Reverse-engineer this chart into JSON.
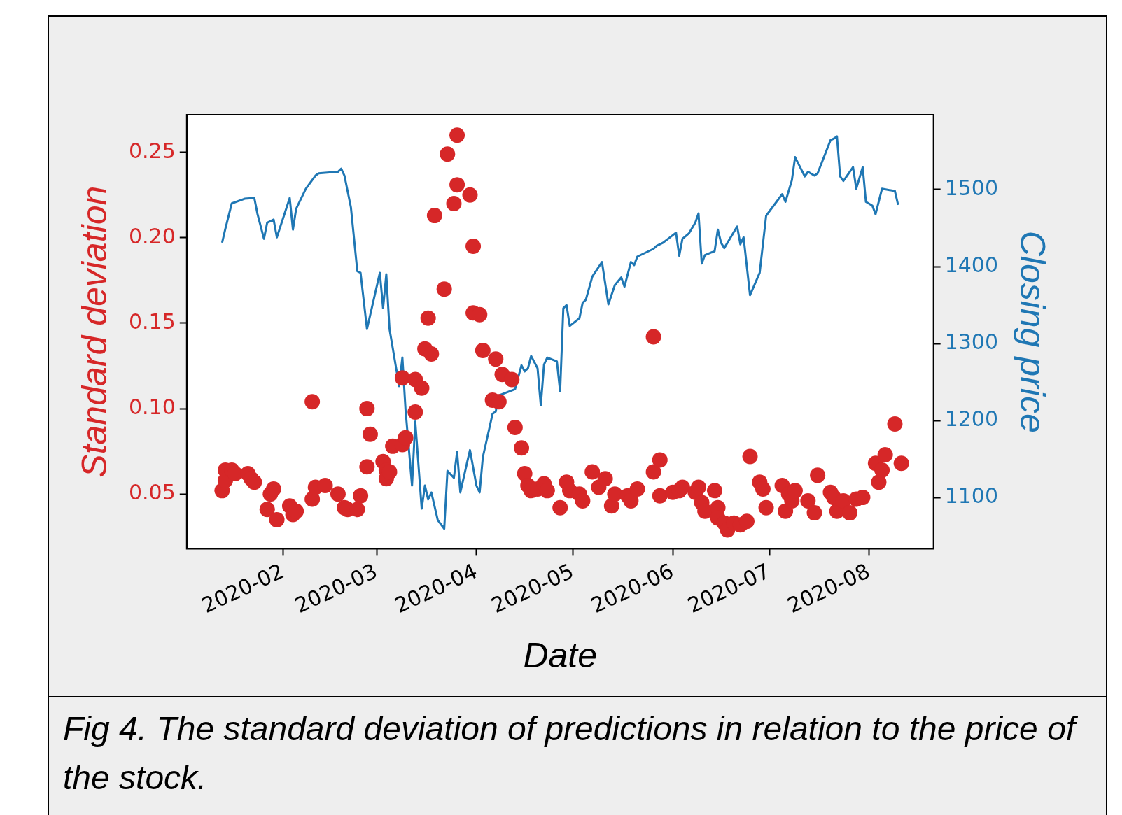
{
  "chart_data": {
    "type": "scatter",
    "xlabel": "Date",
    "ylabel": "Standard deviation",
    "y2label": "Closing price",
    "annotations": [
      "Fig 4. The standard deviation of predictions in relation to the price of the stock."
    ],
    "xlim": [
      "2020-01-02",
      "2020-08-21"
    ],
    "xticks": [
      "2020-02",
      "2020-03",
      "2020-04",
      "2020-05",
      "2020-06",
      "2020-07",
      "2020-08"
    ],
    "ylim": [
      0.018,
      0.272
    ],
    "yticks": [
      0.05,
      {
        "value": 0.1,
        "label": "0.10"
      },
      0.15,
      {
        "value": 0.2,
        "label": "0.20"
      },
      0.25
    ],
    "y2lim": [
      1034,
      1597
    ],
    "y2ticks": [
      1100,
      1200,
      1300,
      1400,
      1500
    ],
    "grid": false,
    "line_style": "solid",
    "series": [
      {
        "marker": "circle",
        "color": "#d62728",
        "x": [
          "2020-01-13",
          "2020-01-14",
          "2020-01-14",
          "2020-01-16",
          "2020-01-17",
          "2020-01-21",
          "2020-01-22",
          "2020-01-23",
          "2020-01-27",
          "2020-01-28",
          "2020-01-29",
          "2020-01-30",
          "2020-02-03",
          "2020-02-04",
          "2020-02-05",
          "2020-02-10",
          "2020-02-10",
          "2020-02-11",
          "2020-02-14",
          "2020-02-18",
          "2020-02-20",
          "2020-02-21",
          "2020-02-24",
          "2020-02-25",
          "2020-02-27",
          "2020-02-27",
          "2020-02-28",
          "2020-03-03",
          "2020-03-04",
          "2020-03-04",
          "2020-03-05",
          "2020-03-06",
          "2020-03-09",
          "2020-03-09",
          "2020-03-10",
          "2020-03-13",
          "2020-03-13",
          "2020-03-15",
          "2020-03-16",
          "2020-03-17",
          "2020-03-18",
          "2020-03-19",
          "2020-03-22",
          "2020-03-23",
          "2020-03-25",
          "2020-03-26",
          "2020-03-26",
          "2020-03-30",
          "2020-03-31",
          "2020-03-31",
          "2020-04-02",
          "2020-04-03",
          "2020-04-06",
          "2020-04-07",
          "2020-04-08",
          "2020-04-09",
          "2020-04-12",
          "2020-04-13",
          "2020-04-15",
          "2020-04-16",
          "2020-04-17",
          "2020-04-18",
          "2020-04-20",
          "2020-04-22",
          "2020-04-23",
          "2020-04-27",
          "2020-04-29",
          "2020-04-30",
          "2020-05-03",
          "2020-05-04",
          "2020-05-07",
          "2020-05-09",
          "2020-05-11",
          "2020-05-13",
          "2020-05-14",
          "2020-05-18",
          "2020-05-19",
          "2020-05-21",
          "2020-05-26",
          "2020-05-26",
          "2020-05-28",
          "2020-05-28",
          "2020-06-01",
          "2020-06-03",
          "2020-06-04",
          "2020-06-08",
          "2020-06-09",
          "2020-06-10",
          "2020-06-11",
          "2020-06-14",
          "2020-06-15",
          "2020-06-15",
          "2020-06-17",
          "2020-06-18",
          "2020-06-20",
          "2020-06-22",
          "2020-06-24",
          "2020-06-25",
          "2020-06-28",
          "2020-06-29",
          "2020-06-30",
          "2020-07-05",
          "2020-07-06",
          "2020-07-07",
          "2020-07-08",
          "2020-07-09",
          "2020-07-13",
          "2020-07-15",
          "2020-07-16",
          "2020-07-20",
          "2020-07-21",
          "2020-07-22",
          "2020-07-24",
          "2020-07-26",
          "2020-07-28",
          "2020-07-30",
          "2020-08-03",
          "2020-08-04",
          "2020-08-05",
          "2020-08-06",
          "2020-08-09",
          "2020-08-11"
        ],
        "values": [
          0.052,
          0.064,
          0.058,
          0.064,
          0.062,
          0.062,
          0.059,
          0.057,
          0.041,
          0.05,
          0.053,
          0.035,
          0.043,
          0.038,
          0.04,
          0.104,
          0.047,
          0.054,
          0.055,
          0.05,
          0.042,
          0.041,
          0.041,
          0.049,
          0.066,
          0.1,
          0.085,
          0.069,
          0.064,
          0.059,
          0.063,
          0.078,
          0.079,
          0.118,
          0.083,
          0.117,
          0.098,
          0.112,
          0.135,
          0.153,
          0.132,
          0.213,
          0.17,
          0.249,
          0.22,
          0.231,
          0.26,
          0.225,
          0.195,
          0.156,
          0.155,
          0.134,
          0.105,
          0.129,
          0.104,
          0.12,
          0.117,
          0.089,
          0.077,
          0.062,
          0.055,
          0.052,
          0.053,
          0.056,
          0.052,
          0.042,
          0.057,
          0.052,
          0.05,
          0.046,
          0.063,
          0.054,
          0.059,
          0.043,
          0.05,
          0.049,
          0.046,
          0.053,
          0.142,
          0.063,
          0.07,
          0.049,
          0.051,
          0.052,
          0.054,
          0.051,
          0.054,
          0.045,
          0.04,
          0.052,
          0.042,
          0.036,
          0.033,
          0.029,
          0.033,
          0.032,
          0.034,
          0.072,
          0.057,
          0.053,
          0.042,
          0.055,
          0.04,
          0.05,
          0.046,
          0.052,
          0.046,
          0.039,
          0.061,
          0.051,
          0.048,
          0.04,
          0.046,
          0.039,
          0.047,
          0.048,
          0.068,
          0.057,
          0.064,
          0.073,
          0.091,
          0.068
        ]
      },
      {
        "type": "line",
        "axis": "y2",
        "color": "#1f77b4",
        "x": [
          "2020-01-13",
          "2020-01-14",
          "2020-01-16",
          "2020-01-20",
          "2020-01-23",
          "2020-01-24",
          "2020-01-26",
          "2020-01-27",
          "2020-01-29",
          "2020-01-30",
          "2020-02-03",
          "2020-02-04",
          "2020-02-05",
          "2020-02-08",
          "2020-02-11",
          "2020-02-12",
          "2020-02-18",
          "2020-02-19",
          "2020-02-20",
          "2020-02-22",
          "2020-02-24",
          "2020-02-25",
          "2020-02-27",
          "2020-03-02",
          "2020-03-03",
          "2020-03-04",
          "2020-03-05",
          "2020-03-08",
          "2020-03-09",
          "2020-03-10",
          "2020-03-12",
          "2020-03-13",
          "2020-03-15",
          "2020-03-16",
          "2020-03-17",
          "2020-03-18",
          "2020-03-20",
          "2020-03-22",
          "2020-03-23",
          "2020-03-25",
          "2020-03-26",
          "2020-03-27",
          "2020-03-29",
          "2020-03-30",
          "2020-04-01",
          "2020-04-02",
          "2020-04-03",
          "2020-04-05",
          "2020-04-06",
          "2020-04-07",
          "2020-04-08",
          "2020-04-13",
          "2020-04-15",
          "2020-04-16",
          "2020-04-17",
          "2020-04-18",
          "2020-04-20",
          "2020-04-21",
          "2020-04-22",
          "2020-04-23",
          "2020-04-26",
          "2020-04-27",
          "2020-04-28",
          "2020-04-29",
          "2020-04-30",
          "2020-05-03",
          "2020-05-04",
          "2020-05-05",
          "2020-05-07",
          "2020-05-10",
          "2020-05-12",
          "2020-05-14",
          "2020-05-16",
          "2020-05-17",
          "2020-05-19",
          "2020-05-20",
          "2020-05-21",
          "2020-05-26",
          "2020-05-27",
          "2020-05-29",
          "2020-06-02",
          "2020-06-03",
          "2020-06-04",
          "2020-06-06",
          "2020-06-08",
          "2020-06-09",
          "2020-06-10",
          "2020-06-11",
          "2020-06-14",
          "2020-06-15",
          "2020-06-16",
          "2020-06-17",
          "2020-06-21",
          "2020-06-22",
          "2020-06-23",
          "2020-06-25",
          "2020-06-28",
          "2020-06-30",
          "2020-07-05",
          "2020-07-06",
          "2020-07-08",
          "2020-07-09",
          "2020-07-12",
          "2020-07-13",
          "2020-07-15",
          "2020-07-16",
          "2020-07-20",
          "2020-07-21",
          "2020-07-22",
          "2020-07-23",
          "2020-07-24",
          "2020-07-27",
          "2020-07-28",
          "2020-07-30",
          "2020-07-31",
          "2020-08-02",
          "2020-08-03",
          "2020-08-05",
          "2020-08-09",
          "2020-08-10"
        ],
        "values": [
          1431,
          1449,
          1482,
          1488,
          1489,
          1468,
          1436,
          1457,
          1461,
          1438,
          1489,
          1448,
          1475,
          1501,
          1518,
          1521,
          1523,
          1527,
          1518,
          1477,
          1394,
          1392,
          1319,
          1392,
          1346,
          1390,
          1319,
          1245,
          1282,
          1213,
          1116,
          1199,
          1086,
          1116,
          1098,
          1107,
          1071,
          1060,
          1135,
          1126,
          1160,
          1107,
          1144,
          1162,
          1116,
          1107,
          1153,
          1190,
          1209,
          1212,
          1233,
          1241,
          1272,
          1264,
          1268,
          1284,
          1268,
          1220,
          1273,
          1282,
          1277,
          1238,
          1346,
          1350,
          1323,
          1333,
          1353,
          1357,
          1387,
          1406,
          1351,
          1376,
          1386,
          1374,
          1406,
          1402,
          1413,
          1423,
          1427,
          1431,
          1444,
          1414,
          1436,
          1443,
          1457,
          1469,
          1404,
          1415,
          1420,
          1448,
          1431,
          1424,
          1452,
          1429,
          1438,
          1363,
          1392,
          1466,
          1494,
          1484,
          1512,
          1542,
          1517,
          1523,
          1518,
          1521,
          1564,
          1566,
          1569,
          1517,
          1511,
          1529,
          1501,
          1529,
          1484,
          1479,
          1468,
          1501,
          1498,
          1480
        ]
      }
    ]
  }
}
